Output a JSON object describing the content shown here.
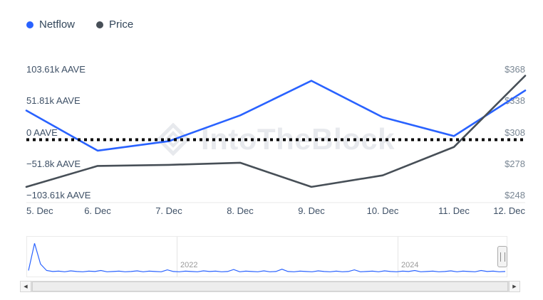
{
  "legend": {
    "items": [
      {
        "label": "Netflow",
        "color": "#2962ff"
      },
      {
        "label": "Price",
        "color": "#474f57"
      }
    ]
  },
  "chart_data": {
    "type": "line",
    "title": "",
    "x_labels": [
      "5. Dec",
      "6. Dec",
      "7. Dec",
      "8. Dec",
      "9. Dec",
      "10. Dec",
      "11. Dec",
      "12. Dec"
    ],
    "series": [
      {
        "name": "Netflow",
        "axis": "left",
        "unit": "AAVE",
        "color": "#2962ff",
        "values": [
          48000,
          -18000,
          -2500,
          40000,
          97000,
          37000,
          6000,
          81000
        ]
      },
      {
        "name": "Price",
        "axis": "right",
        "unit": "USD",
        "color": "#474f57",
        "values": [
          263,
          283,
          284,
          286,
          263,
          274,
          301,
          369
        ]
      }
    ],
    "left_axis": {
      "labels": [
        "103.61k AAVE",
        "51.81k AAVE",
        "0 AAVE",
        "−51.8k AAVE",
        "−103.61k AAVE"
      ],
      "max": 103610,
      "min": -103610
    },
    "right_axis": {
      "labels": [
        "$368",
        "$338",
        "$308",
        "$278",
        "$248"
      ],
      "max": 368,
      "min": 248
    },
    "zero_line_value": 0,
    "zero_line_color": "#000000",
    "grid": "off",
    "legend_position": "top-left"
  },
  "watermark": {
    "text": "IntoTheBlock"
  },
  "navigator": {
    "ticks": [
      {
        "label": "2022"
      },
      {
        "label": "2024"
      }
    ],
    "spark": [
      0.1,
      0.95,
      0.3,
      0.1,
      0.07,
      0.08,
      0.06,
      0.09,
      0.07,
      0.06,
      0.08,
      0.07,
      0.1,
      0.06,
      0.07,
      0.08,
      0.06,
      0.07,
      0.09,
      0.06,
      0.08,
      0.07,
      0.06,
      0.12,
      0.07,
      0.06,
      0.08,
      0.07,
      0.06,
      0.09,
      0.07,
      0.08,
      0.06,
      0.07,
      0.13,
      0.06,
      0.08,
      0.07,
      0.06,
      0.09,
      0.06,
      0.07,
      0.14,
      0.07,
      0.06,
      0.08,
      0.07,
      0.06,
      0.09,
      0.07,
      0.06,
      0.08,
      0.06,
      0.07,
      0.12,
      0.06,
      0.07,
      0.08,
      0.06,
      0.09,
      0.07,
      0.06,
      0.08,
      0.07,
      0.1,
      0.06,
      0.07,
      0.08,
      0.06,
      0.07,
      0.09,
      0.06,
      0.08,
      0.07,
      0.06,
      0.1,
      0.07,
      0.08,
      0.06,
      0.07
    ]
  },
  "icons": {
    "scroll_left": "◀",
    "scroll_right": "▶"
  }
}
